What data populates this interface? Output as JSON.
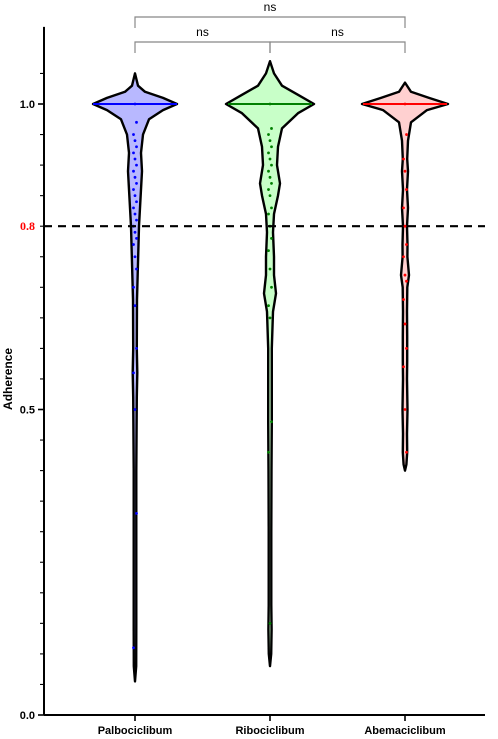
{
  "chart_data": {
    "type": "violin",
    "title": "",
    "xlabel": "",
    "ylabel": "Adherence",
    "ylim": [
      0,
      1.1
    ],
    "yticks_major": [
      "0.0",
      "0.5",
      "1.0"
    ],
    "categories": [
      "Palbociclibum",
      "Ribociclibum",
      "Abemaciclibum"
    ],
    "reference_line": {
      "value": 0.8,
      "label": "0.8",
      "color": "#ff0000",
      "style": "dashed"
    },
    "significance": [
      {
        "label": "ns",
        "from": "Palbociclibum",
        "to": "Ribociclibum"
      },
      {
        "label": "ns",
        "from": "Ribociclibum",
        "to": "Abemaciclibum"
      },
      {
        "label": "ns",
        "from": "Palbociclibum",
        "to": "Abemaciclibum"
      }
    ],
    "series": [
      {
        "name": "Palbociclibum",
        "color": "#0000ff",
        "fill": "#b8b8ff",
        "median": 1.0,
        "min": 0.055,
        "max": 1.05,
        "points": [
          1.0,
          0.97,
          0.95,
          0.94,
          0.93,
          0.92,
          0.91,
          0.9,
          0.89,
          0.88,
          0.87,
          0.86,
          0.85,
          0.84,
          0.83,
          0.82,
          0.81,
          0.8,
          0.79,
          0.78,
          0.77,
          0.75,
          0.73,
          0.7,
          0.67,
          0.6,
          0.56,
          0.5,
          0.33,
          0.11
        ]
      },
      {
        "name": "Ribociclibum",
        "color": "#008000",
        "fill": "#c8ffc8",
        "median": 1.0,
        "min": 0.08,
        "max": 1.07,
        "points": [
          1.0,
          0.96,
          0.95,
          0.94,
          0.93,
          0.92,
          0.91,
          0.9,
          0.89,
          0.88,
          0.87,
          0.86,
          0.85,
          0.83,
          0.82,
          0.8,
          0.78,
          0.76,
          0.73,
          0.7,
          0.67,
          0.65,
          0.48,
          0.43,
          0.15
        ]
      },
      {
        "name": "Abemaciclibum",
        "color": "#ff0000",
        "fill": "#ffd0d0",
        "median": 1.0,
        "min": 0.4,
        "max": 1.035,
        "points": [
          1.0,
          0.95,
          0.91,
          0.89,
          0.86,
          0.83,
          0.8,
          0.77,
          0.75,
          0.72,
          0.71,
          0.68,
          0.64,
          0.6,
          0.57,
          0.5,
          0.43
        ]
      }
    ]
  }
}
